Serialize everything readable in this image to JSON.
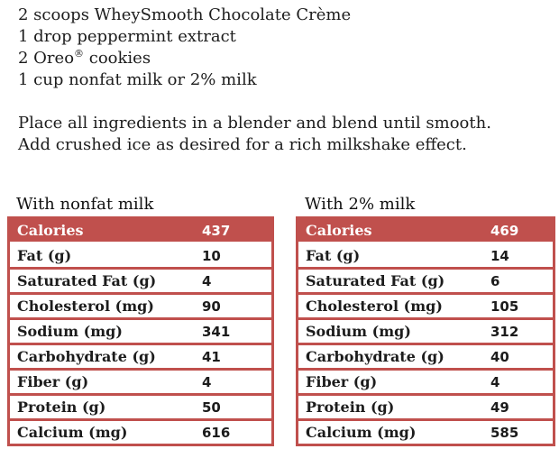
{
  "colors": {
    "accent": "#c0504d",
    "header_text": "#ffffff",
    "body_text": "#1c1c1c"
  },
  "recipe": {
    "ingredients": [
      {
        "text": "2 scoops WheySmooth Chocolate Crème"
      },
      {
        "text": "1 drop peppermint extract"
      },
      {
        "pre": "2 Oreo",
        "sup": "®",
        "post": " cookies"
      },
      {
        "text": "1 cup nonfat milk or 2% milk"
      }
    ],
    "instructions": [
      {
        "text": "Place all ingredients in a blender and blend until smooth."
      },
      {
        "text": "Add crushed ice as desired for a rich milkshake effect."
      }
    ]
  },
  "tables": [
    {
      "caption": "With nonfat milk",
      "rows": [
        {
          "label": "Calories",
          "value": "437"
        },
        {
          "label": "Fat (g)",
          "value": "10"
        },
        {
          "label": "Saturated Fat (g)",
          "value": "4"
        },
        {
          "label": "Cholesterol (mg)",
          "value": "90"
        },
        {
          "label": "Sodium (mg)",
          "value": "341"
        },
        {
          "label": "Carbohydrate (g)",
          "value": "41"
        },
        {
          "label": "Fiber (g)",
          "value": "4"
        },
        {
          "label": "Protein (g)",
          "value": "50"
        },
        {
          "label": "Calcium (mg)",
          "value": "616"
        }
      ]
    },
    {
      "caption": "With 2% milk",
      "rows": [
        {
          "label": "Calories",
          "value": "469"
        },
        {
          "label": "Fat (g)",
          "value": "14"
        },
        {
          "label": "Saturated Fat (g)",
          "value": "6"
        },
        {
          "label": "Cholesterol (mg)",
          "value": "105"
        },
        {
          "label": "Sodium (mg)",
          "value": "312"
        },
        {
          "label": "Carbohydrate (g)",
          "value": "40"
        },
        {
          "label": "Fiber (g)",
          "value": "4"
        },
        {
          "label": "Protein (g)",
          "value": "49"
        },
        {
          "label": "Calcium (mg)",
          "value": "585"
        }
      ]
    }
  ]
}
